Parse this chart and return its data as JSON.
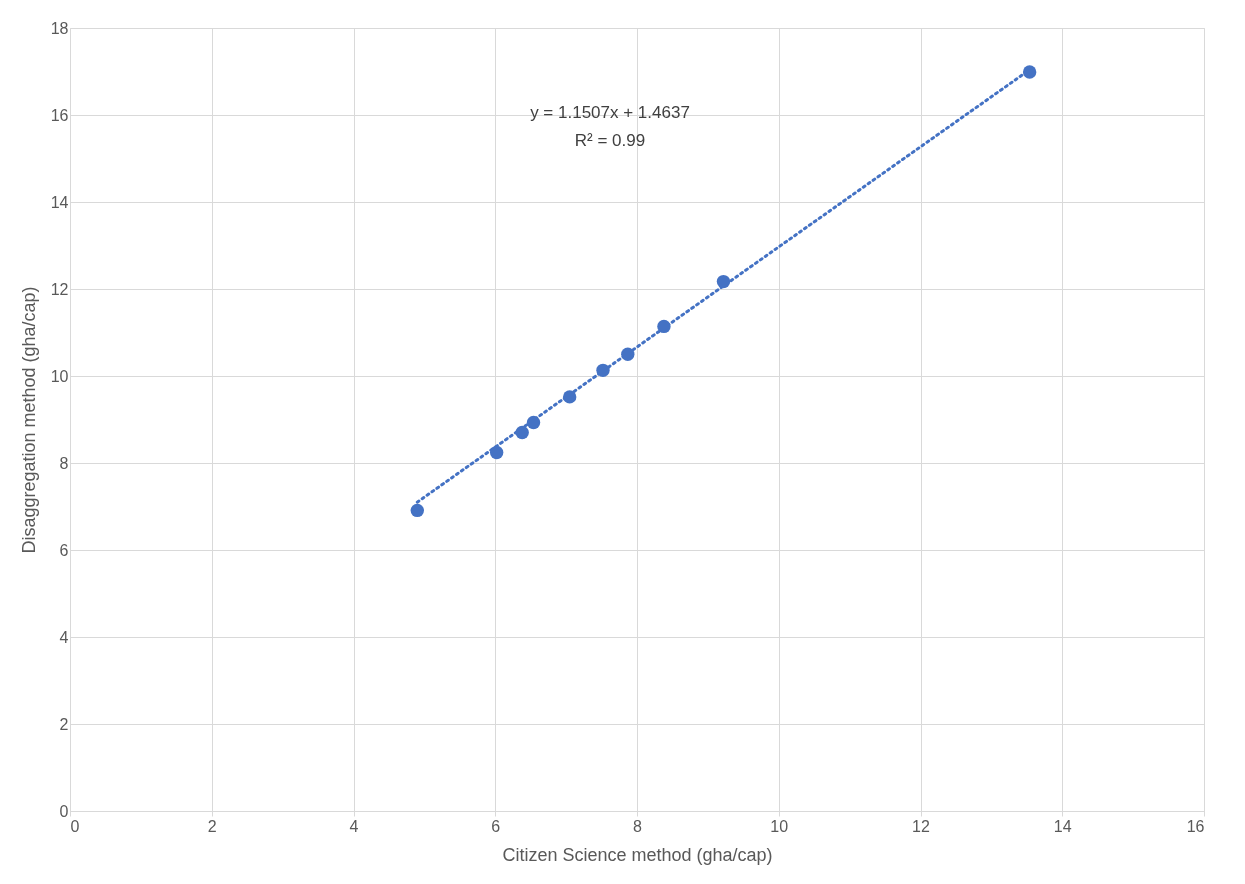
{
  "chart_data": {
    "type": "scatter",
    "xlabel": "Citizen Science method (gha/cap)",
    "ylabel": "Disaggregation method (gha/cap)",
    "annotations": [
      "y = 1.1507x + 1.4637",
      "R² = 0.99"
    ],
    "series": [
      {
        "type": "line",
        "color": "#4472c4",
        "line_style": "dotted",
        "x": [
          4.9,
          13.54
        ],
        "values": [
          7.1,
          17.04
        ]
      },
      {
        "color": "#4472c4",
        "marker": "circle",
        "x": [
          4.9,
          6.02,
          6.38,
          6.54,
          7.05,
          7.52,
          7.87,
          8.38,
          9.22,
          13.54
        ],
        "values": [
          6.91,
          8.24,
          8.7,
          8.93,
          9.52,
          10.13,
          10.5,
          11.14,
          12.17,
          16.99
        ]
      }
    ],
    "xlim": [
      0,
      16
    ],
    "xticks": [
      0,
      2,
      4,
      6,
      8,
      10,
      12,
      14,
      16
    ],
    "ylim": [
      0,
      18
    ],
    "yticks": [
      0,
      2,
      4,
      6,
      8,
      10,
      12,
      14,
      16,
      18
    ],
    "grid": true
  }
}
